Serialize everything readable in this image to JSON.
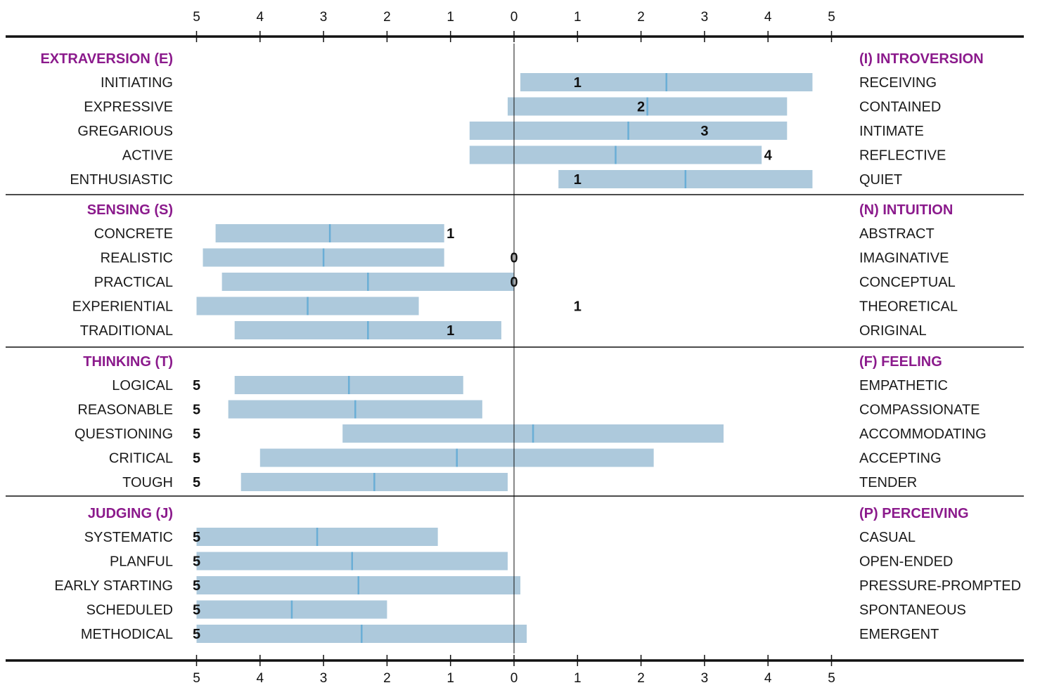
{
  "chart_data": {
    "type": "bar",
    "x_ticks": [
      "5",
      "4",
      "3",
      "2",
      "1",
      "0",
      "1",
      "2",
      "3",
      "4",
      "5"
    ],
    "xlim": [
      -5,
      5
    ],
    "colors": {
      "bar": "#adc9dc",
      "median": "#6aaed6",
      "header": "#8b1a8c",
      "axis": "#111111"
    },
    "sections": [
      {
        "left_header": "EXTRAVERSION (E)",
        "right_header": "(I) INTROVERSION",
        "rows": [
          {
            "left": "INITIATING",
            "right": "RECEIVING",
            "low": 0.1,
            "mid": 2.4,
            "high": 4.7,
            "score": "1",
            "score_x": 1
          },
          {
            "left": "EXPRESSIVE",
            "right": "CONTAINED",
            "low": -0.1,
            "mid": 2.1,
            "high": 4.3,
            "score": "2",
            "score_x": 2
          },
          {
            "left": "GREGARIOUS",
            "right": "INTIMATE",
            "low": -0.7,
            "mid": 1.8,
            "high": 4.3,
            "score": "3",
            "score_x": 3
          },
          {
            "left": "ACTIVE",
            "right": "REFLECTIVE",
            "low": -0.7,
            "mid": 1.6,
            "high": 3.9,
            "score": "4",
            "score_x": 4
          },
          {
            "left": "ENTHUSIASTIC",
            "right": "QUIET",
            "low": 0.7,
            "mid": 2.7,
            "high": 4.7,
            "score": "1",
            "score_x": 1
          }
        ]
      },
      {
        "left_header": "SENSING (S)",
        "right_header": "(N) INTUITION",
        "rows": [
          {
            "left": "CONCRETE",
            "right": "ABSTRACT",
            "low": -4.7,
            "mid": -2.9,
            "high": -1.1,
            "score": "1",
            "score_x": -1
          },
          {
            "left": "REALISTIC",
            "right": "IMAGINATIVE",
            "low": -4.9,
            "mid": -3.0,
            "high": -1.1,
            "score": "0",
            "score_x": 0
          },
          {
            "left": "PRACTICAL",
            "right": "CONCEPTUAL",
            "low": -4.6,
            "mid": -2.3,
            "high": 0.0,
            "score": "0",
            "score_x": 0
          },
          {
            "left": "EXPERIENTIAL",
            "right": "THEORETICAL",
            "low": -5.0,
            "mid": -3.25,
            "high": -1.5,
            "score": "1",
            "score_x": 1
          },
          {
            "left": "TRADITIONAL",
            "right": "ORIGINAL",
            "low": -4.4,
            "mid": -2.3,
            "high": -0.2,
            "score": "1",
            "score_x": -1
          }
        ]
      },
      {
        "left_header": "THINKING (T)",
        "right_header": "(F) FEELING",
        "rows": [
          {
            "left": "LOGICAL",
            "right": "EMPATHETIC",
            "low": -4.4,
            "mid": -2.6,
            "high": -0.8,
            "score": "5",
            "score_x": -5
          },
          {
            "left": "REASONABLE",
            "right": "COMPASSIONATE",
            "low": -4.5,
            "mid": -2.5,
            "high": -0.5,
            "score": "5",
            "score_x": -5
          },
          {
            "left": "QUESTIONING",
            "right": "ACCOMMODATING",
            "low": -2.7,
            "mid": 0.3,
            "high": 3.3,
            "score": "5",
            "score_x": -5
          },
          {
            "left": "CRITICAL",
            "right": "ACCEPTING",
            "low": -4.0,
            "mid": -0.9,
            "high": 2.2,
            "score": "5",
            "score_x": -5
          },
          {
            "left": "TOUGH",
            "right": "TENDER",
            "low": -4.3,
            "mid": -2.2,
            "high": -0.1,
            "score": "5",
            "score_x": -5
          }
        ]
      },
      {
        "left_header": "JUDGING (J)",
        "right_header": "(P) PERCEIVING",
        "rows": [
          {
            "left": "SYSTEMATIC",
            "right": "CASUAL",
            "low": -5.0,
            "mid": -3.1,
            "high": -1.2,
            "score": "5",
            "score_x": -5
          },
          {
            "left": "PLANFUL",
            "right": "OPEN-ENDED",
            "low": -5.0,
            "mid": -2.55,
            "high": -0.1,
            "score": "5",
            "score_x": -5
          },
          {
            "left": "EARLY STARTING",
            "right": "PRESSURE-PROMPTED",
            "low": -5.0,
            "mid": -2.45,
            "high": 0.1,
            "score": "5",
            "score_x": -5
          },
          {
            "left": "SCHEDULED",
            "right": "SPONTANEOUS",
            "low": -5.0,
            "mid": -3.5,
            "high": -2.0,
            "score": "5",
            "score_x": -5
          },
          {
            "left": "METHODICAL",
            "right": "EMERGENT",
            "low": -5.0,
            "mid": -2.4,
            "high": 0.2,
            "score": "5",
            "score_x": -5
          }
        ]
      }
    ]
  }
}
